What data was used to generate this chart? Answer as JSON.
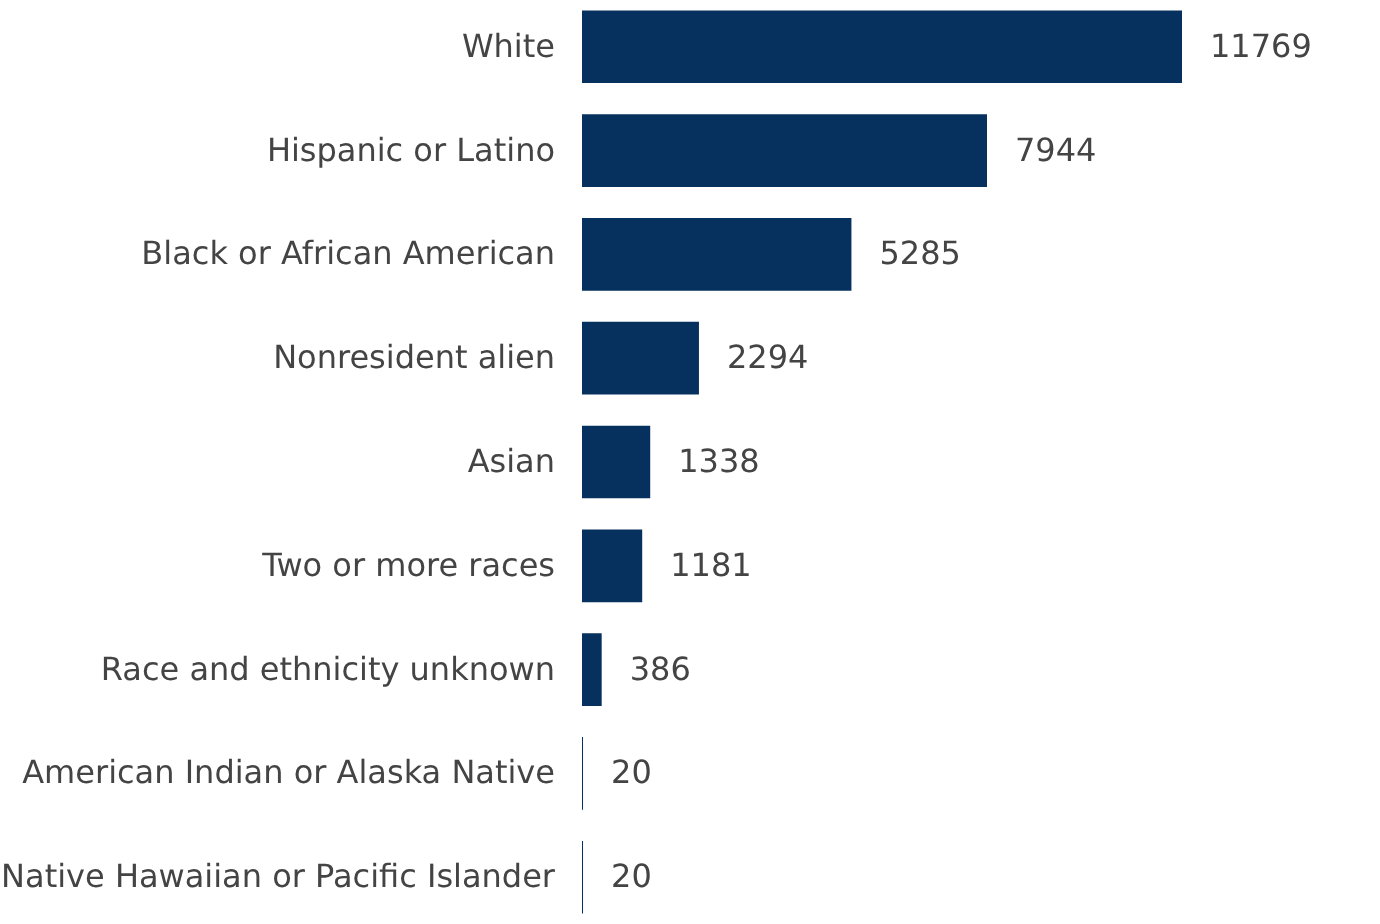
{
  "chart_data": {
    "type": "bar",
    "orientation": "horizontal",
    "categories": [
      "White",
      "Hispanic or Latino",
      "Black or African American",
      "Nonresident alien",
      "Asian",
      "Two or more races",
      "Race and ethnicity unknown",
      "American Indian or Alaska Native",
      "Native Hawaiian or Pacific Islander"
    ],
    "values": [
      11769,
      7944,
      5285,
      2294,
      1338,
      1181,
      386,
      20,
      20
    ],
    "color": "#06305e",
    "data_labels": true
  }
}
